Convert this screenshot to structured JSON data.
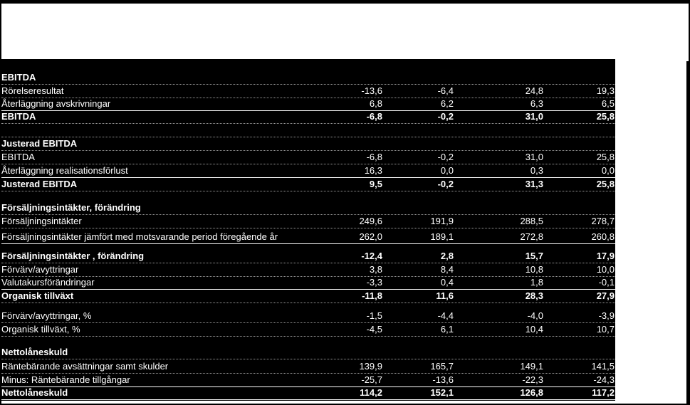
{
  "rows": [
    {
      "label": "EBITDA",
      "values": [],
      "bold": true,
      "line": "dotted"
    },
    {
      "label": "Rörelseresultat",
      "values": [
        "-13,6",
        "-6,4",
        "24,8",
        "19,3"
      ],
      "bold": false,
      "line": "dotted"
    },
    {
      "label": "Återläggning  avskrivningar",
      "values": [
        "6,8",
        "6,2",
        "6,3",
        "6,5"
      ],
      "bold": false,
      "line": "solid"
    },
    {
      "label": "EBITDA",
      "values": [
        "-6,8",
        "-0,2",
        "31,0",
        "25,8"
      ],
      "bold": true,
      "line": "dotted"
    },
    {
      "label": "",
      "values": [],
      "bold": false,
      "line": "dotted"
    },
    {
      "label": "Justerad EBITDA",
      "values": [],
      "bold": true,
      "line": "dotted"
    },
    {
      "label": "EBITDA",
      "values": [
        "-6,8",
        "-0,2",
        "31,0",
        "25,8"
      ],
      "bold": false,
      "line": "dotted"
    },
    {
      "label": "Återläggning  realisationsförlust",
      "values": [
        "16,3",
        "0,0",
        "0,3",
        "0,0"
      ],
      "bold": false,
      "line": "solid"
    },
    {
      "label": "Justerad EBITDA",
      "values": [
        "9,5",
        "-0,2",
        "31,3",
        "25,8"
      ],
      "bold": true,
      "line": "dotted"
    },
    {
      "label": "Försäljningsintäkter, förändring",
      "values": [],
      "bold": true,
      "line": "dotted"
    },
    {
      "label": "Försäljningsintäkter",
      "values": [
        "249,6",
        "191,9",
        "288,5",
        "278,7"
      ],
      "bold": false,
      "line": "dotted"
    },
    {
      "label": "Försäljningsintäkter jämfört med motsvarande period föregående år",
      "values": [
        "262,0",
        "189,1",
        "272,8",
        "260,8"
      ],
      "bold": false,
      "line": "solid"
    },
    {
      "label": "Försäljningsintäkter , förändring",
      "values": [
        "-12,4",
        "2,8",
        "15,7",
        "17,9"
      ],
      "bold": true,
      "line": "dotted"
    },
    {
      "label": "Förvärv/avyttringar",
      "values": [
        "3,8",
        "8,4",
        "10,8",
        "10,0"
      ],
      "bold": false,
      "line": "dotted"
    },
    {
      "label": "Valutakursförändringar",
      "values": [
        "-3,3",
        "0,4",
        "1,8",
        "-0,1"
      ],
      "bold": false,
      "line": "solid"
    },
    {
      "label": "Organisk tillväxt",
      "values": [
        "-11,8",
        "11,6",
        "28,3",
        "27,9"
      ],
      "bold": true,
      "line": "dotted"
    },
    {
      "label": "Förvärv/avyttringar,   %",
      "values": [
        "-1,5",
        "-4,4",
        "-4,0",
        "-3,9"
      ],
      "bold": false,
      "line": "dotted"
    },
    {
      "label": "Organisk tillväxt,  %",
      "values": [
        "-4,5",
        "6,1",
        "10,4",
        "10,7"
      ],
      "bold": false,
      "line": "dotted"
    },
    {
      "label": "Nettolåneskuld",
      "values": [],
      "bold": true,
      "line": "dotted"
    },
    {
      "label": "Räntebärande avsättningar samt skulder",
      "values": [
        "139,9",
        "165,7",
        "149,1",
        "141,5"
      ],
      "bold": false,
      "line": "dotted"
    },
    {
      "label": "Minus:  Räntebärande tillgångar",
      "values": [
        "-25,7",
        "-13,6",
        "-22,3",
        "-24,3"
      ],
      "bold": false,
      "line": "solid"
    },
    {
      "label": "Nettolåneskuld",
      "values": [
        "114,2",
        "152,1",
        "126,8",
        "117,2"
      ],
      "bold": true,
      "line": "solid"
    }
  ]
}
